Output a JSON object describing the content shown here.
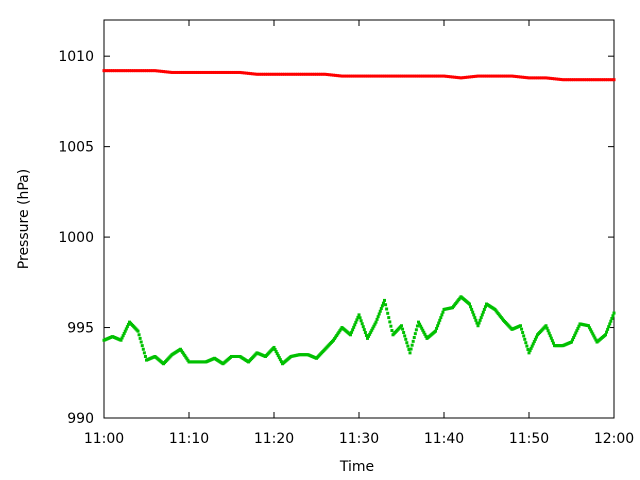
{
  "chart_data": {
    "type": "scatter",
    "title": "",
    "xlabel": "Time",
    "ylabel": "Pressure (hPa)",
    "xlim": [
      "11:00",
      "12:00"
    ],
    "ylim": [
      990,
      1012
    ],
    "x_ticks": [
      "11:00",
      "11:10",
      "11:20",
      "11:30",
      "11:40",
      "11:50",
      "12:00"
    ],
    "y_ticks": [
      "990",
      "995",
      "1000",
      "1005",
      "1010"
    ],
    "grid": false,
    "legend": "none",
    "series": [
      {
        "color": "#ff0000",
        "marker": "square",
        "x": [
          "11:00",
          "11:02",
          "11:04",
          "11:06",
          "11:08",
          "11:10",
          "11:12",
          "11:14",
          "11:16",
          "11:18",
          "11:20",
          "11:22",
          "11:24",
          "11:26",
          "11:28",
          "11:30",
          "11:32",
          "11:34",
          "11:36",
          "11:38",
          "11:40",
          "11:42",
          "11:44",
          "11:46",
          "11:48",
          "11:50",
          "11:52",
          "11:54",
          "11:56",
          "11:58",
          "12:00"
        ],
        "values": [
          1009.2,
          1009.2,
          1009.2,
          1009.2,
          1009.1,
          1009.1,
          1009.1,
          1009.1,
          1009.1,
          1009.0,
          1009.0,
          1009.0,
          1009.0,
          1009.0,
          1008.9,
          1008.9,
          1008.9,
          1008.9,
          1008.9,
          1008.9,
          1008.9,
          1008.8,
          1008.9,
          1008.9,
          1008.9,
          1008.8,
          1008.8,
          1008.7,
          1008.7,
          1008.7,
          1008.7
        ]
      },
      {
        "color": "#00c000",
        "marker": "square",
        "x": [
          "11:00",
          "11:01",
          "11:02",
          "11:03",
          "11:04",
          "11:05",
          "11:06",
          "11:07",
          "11:08",
          "11:09",
          "11:10",
          "11:11",
          "11:12",
          "11:13",
          "11:14",
          "11:15",
          "11:16",
          "11:17",
          "11:18",
          "11:19",
          "11:20",
          "11:21",
          "11:22",
          "11:23",
          "11:24",
          "11:25",
          "11:26",
          "11:27",
          "11:28",
          "11:29",
          "11:30",
          "11:31",
          "11:32",
          "11:33",
          "11:34",
          "11:35",
          "11:36",
          "11:37",
          "11:38",
          "11:39",
          "11:40",
          "11:41",
          "11:42",
          "11:43",
          "11:44",
          "11:45",
          "11:46",
          "11:47",
          "11:48",
          "11:49",
          "11:50",
          "11:51",
          "11:52",
          "11:53",
          "11:54",
          "11:55",
          "11:56",
          "11:57",
          "11:58",
          "11:59",
          "12:00"
        ],
        "values": [
          994.3,
          994.5,
          994.3,
          995.3,
          994.8,
          993.2,
          993.4,
          993.0,
          993.5,
          993.8,
          993.1,
          993.1,
          993.1,
          993.3,
          993.0,
          993.4,
          993.4,
          993.1,
          993.6,
          993.4,
          993.9,
          993.0,
          993.4,
          993.5,
          993.5,
          993.3,
          993.8,
          994.3,
          995.0,
          994.6,
          995.7,
          994.4,
          995.3,
          996.5,
          994.6,
          995.1,
          993.6,
          995.3,
          994.4,
          994.8,
          996.0,
          996.1,
          996.7,
          996.3,
          995.1,
          996.3,
          996.0,
          995.4,
          994.9,
          995.1,
          993.6,
          994.6,
          995.1,
          994.0,
          994.0,
          994.2,
          995.2,
          995.1,
          994.2,
          994.6,
          995.8
        ]
      }
    ]
  }
}
